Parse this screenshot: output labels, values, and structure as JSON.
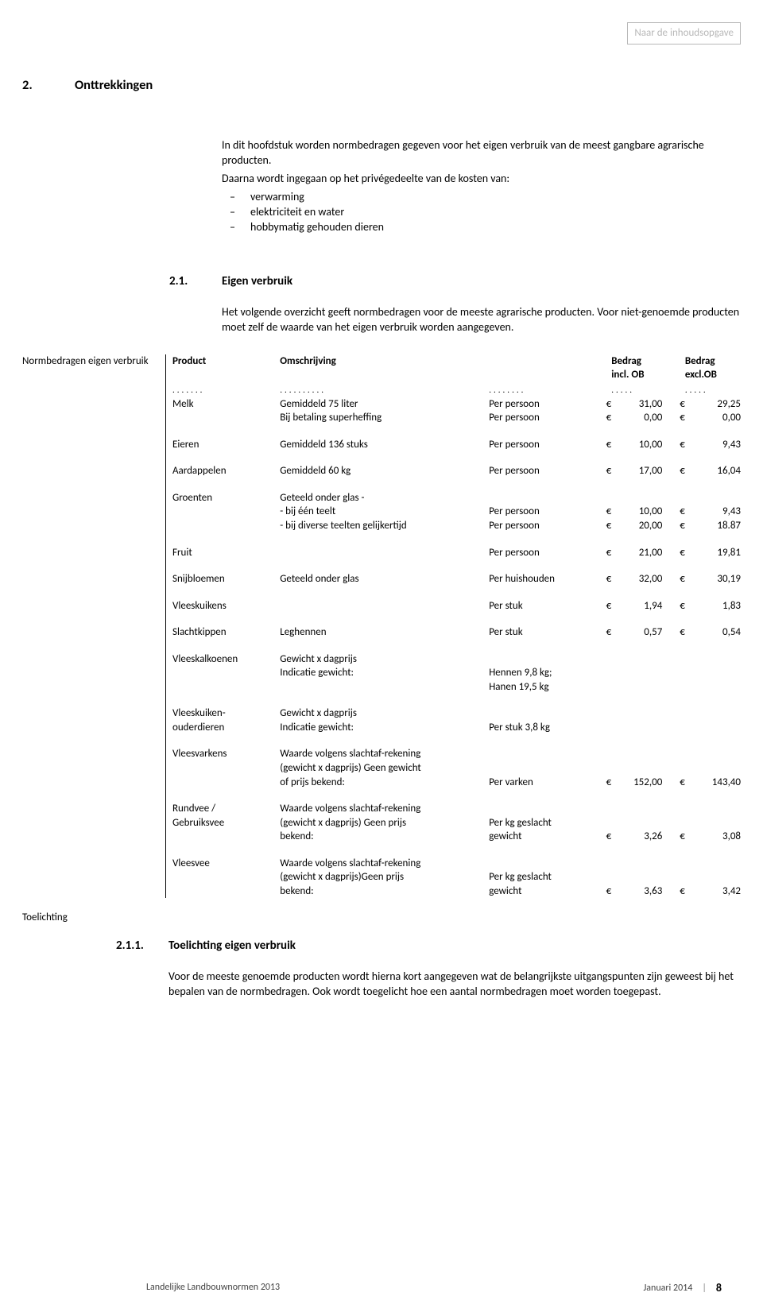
{
  "toc_link": "Naar de inhoudsopgave",
  "sec2": {
    "num": "2.",
    "title": "Onttrekkingen",
    "intro": "In dit hoofdstuk worden normbedragen gegeven voor het eigen verbruik van de meest gangbare agrarische producten.",
    "intro2": "Daarna wordt ingegaan op het privégedeelte van de kosten van:",
    "bullets": [
      "verwarming",
      "elektriciteit en water",
      "hobbymatig gehouden dieren"
    ]
  },
  "sec21": {
    "num": "2.1.",
    "title": "Eigen verbruik",
    "p1": "Het volgende overzicht geeft normbedragen voor de meeste agrarische producten. Voor niet-genoemde producten moet zelf de waarde van het eigen verbruik worden aangegeven."
  },
  "table": {
    "margin_label": "Normbedragen eigen verbruik",
    "headers": {
      "product": "Product",
      "desc": "Omschrijving",
      "amt_incl_l1": "Bedrag",
      "amt_incl_l2": "incl. OB",
      "amt_excl_l1": "Bedrag",
      "amt_excl_l2": "excl.OB"
    },
    "euro": "€"
  },
  "rows": {
    "melk": {
      "product": "Melk",
      "desc1": "Gemiddeld 75 liter",
      "unit1": "Per persoon",
      "v1a": "31,00",
      "v1b": "29,25",
      "desc2": "Bij betaling superheffing",
      "unit2": "Per persoon",
      "v2a": "0,00",
      "v2b": "0,00"
    },
    "eieren": {
      "product": "Eieren",
      "desc": "Gemiddeld 136 stuks",
      "unit": "Per persoon",
      "va": "10,00",
      "vb": "9,43"
    },
    "aardappelen": {
      "product": "Aardappelen",
      "desc": "Gemiddeld 60 kg",
      "unit": "Per persoon",
      "va": "17,00",
      "vb": "16,04"
    },
    "groenten": {
      "product": "Groenten",
      "desc0": "Geteeld onder glas -",
      "desc1": "- bij één teelt",
      "unit1": "Per persoon",
      "v1a": "10,00",
      "v1b": "9,43",
      "desc2": "- bij diverse teelten gelijkertijd",
      "unit2": "Per persoon",
      "v2a": "20,00",
      "v2b": "18.87"
    },
    "fruit": {
      "product": "Fruit",
      "unit": "Per persoon",
      "va": "21,00",
      "vb": "19,81"
    },
    "snijbloemen": {
      "product": "Snijbloemen",
      "desc": "Geteeld onder glas",
      "unit": "Per huishouden",
      "va": "32,00",
      "vb": "30,19"
    },
    "vleeskuikens": {
      "product": "Vleeskuikens",
      "unit": "Per stuk",
      "va": "1,94",
      "vb": "1,83"
    },
    "slachtkippen": {
      "product": "Slachtkippen",
      "desc": "Leghennen",
      "unit": "Per stuk",
      "va": "0,57",
      "vb": "0,54"
    },
    "vleeskalkoenen": {
      "product": "Vleeskalkoenen",
      "desc1": "Gewicht x dagprijs",
      "desc2": "Indicatie gewicht:",
      "unit_l1": "Hennen 9,8 kg;",
      "unit_l2": "Hanen 19,5 kg"
    },
    "vleeskuikenouder": {
      "product_l1": "Vleeskuiken-",
      "product_l2": "ouderdieren",
      "desc1": "Gewicht x dagprijs",
      "desc2": "Indicatie gewicht:",
      "unit": "Per stuk 3,8 kg"
    },
    "vleesvarkens": {
      "product": "Vleesvarkens",
      "desc_l1": "Waarde volgens slachtaf-rekening",
      "desc_l2": "(gewicht x dagprijs) Geen gewicht",
      "desc_l3": "of prijs bekend:",
      "unit": "Per varken",
      "va": "152,00",
      "vb": "143,40"
    },
    "rundvee": {
      "product_l1": "Rundvee /",
      "product_l2": "Gebruiksvee",
      "desc_l1": "Waarde volgens slachtaf-rekening",
      "desc_l2": "(gewicht x dagprijs) Geen prijs",
      "desc_l3": "bekend:",
      "unit_l1": "Per kg geslacht",
      "unit_l2": "gewicht",
      "va": "3,26",
      "vb": "3,08"
    },
    "vleesvee": {
      "product": "Vleesvee",
      "desc_l1": "Waarde volgens slachtaf-rekening",
      "desc_l2": "(gewicht x dagprijs)Geen prijs",
      "desc_l3": "bekend:",
      "unit_l1": "Per kg geslacht",
      "unit_l2": "gewicht",
      "va": "3,63",
      "vb": "3,42"
    }
  },
  "toelichting": {
    "label": "Toelichting",
    "num": "2.1.1.",
    "title": "Toelichting eigen verbruik",
    "body": "Voor de meeste genoemde producten wordt hierna kort aangegeven wat de belangrijkste uitgangspunten zijn geweest bij het bepalen van de normbedragen. Ook wordt toegelicht hoe een aantal normbedragen moet worden toegepast."
  },
  "footer": {
    "left": "Landelijke Landbouwnormen 2013",
    "date": "Januari 2014",
    "page": "8"
  }
}
